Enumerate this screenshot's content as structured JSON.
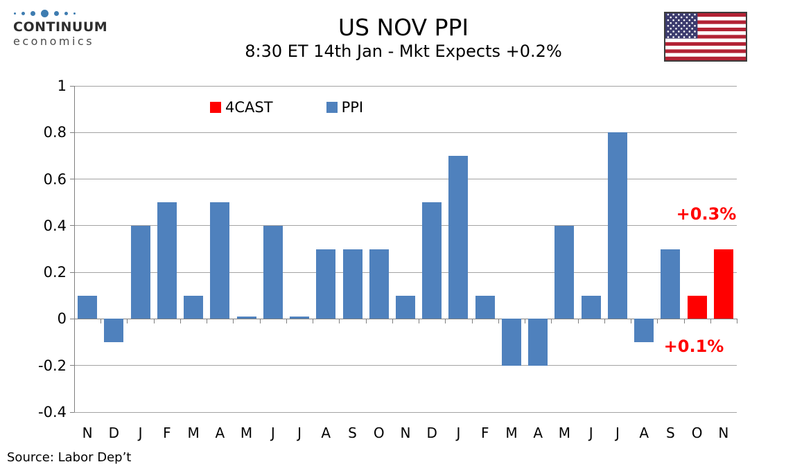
{
  "header": {
    "logo": {
      "line1": "CONTINUUM",
      "line2": "economics"
    },
    "title": "US NOV PPI",
    "subtitle": "8:30 ET 14th Jan - Mkt Expects +0.2%",
    "flag_icon": "us-flag"
  },
  "legend": [
    {
      "label": "4CAST",
      "color": "#FF0000"
    },
    {
      "label": "PPI",
      "color": "#4F81BD"
    }
  ],
  "annotations": [
    {
      "text": "+0.3%",
      "color": "#FF0000"
    },
    {
      "text": "+0.1%",
      "color": "#FF0000"
    }
  ],
  "source": "Source: Labor Dep’t",
  "chart_data": {
    "type": "bar",
    "title": "US NOV PPI",
    "subtitle": "8:30 ET 14th Jan - Mkt Expects +0.2%",
    "categories": [
      "N",
      "D",
      "J",
      "F",
      "M",
      "A",
      "M",
      "J",
      "J",
      "A",
      "S",
      "O",
      "N",
      "D",
      "J",
      "F",
      "M",
      "A",
      "M",
      "J",
      "J",
      "A",
      "S",
      "O",
      "N"
    ],
    "series": [
      {
        "name": "4CAST",
        "color": "#FF0000",
        "values": [
          null,
          null,
          null,
          null,
          null,
          null,
          null,
          null,
          null,
          null,
          null,
          null,
          null,
          null,
          null,
          null,
          null,
          null,
          null,
          null,
          null,
          null,
          null,
          0.1,
          0.3
        ]
      },
      {
        "name": "PPI",
        "color": "#4F81BD",
        "values": [
          0.1,
          -0.1,
          0.4,
          0.5,
          0.1,
          0.5,
          0.01,
          0.4,
          0.01,
          0.3,
          0.3,
          0.3,
          0.1,
          0.5,
          0.7,
          0.1,
          -0.2,
          -0.2,
          0.4,
          0.1,
          0.8,
          -0.1,
          0.3,
          null,
          null
        ]
      }
    ],
    "ylim": [
      -0.4,
      1.0
    ],
    "ytick_step": 0.2,
    "y_tick_labels": [
      "1",
      "0.8",
      "0.6",
      "0.4",
      "0.2",
      "0",
      "-0.2",
      "-0.4"
    ],
    "grid": true,
    "legend_position": "top-center",
    "annotations": [
      {
        "text": "+0.3%",
        "category_index": 24
      },
      {
        "text": "+0.1%",
        "category_index": 23
      }
    ]
  }
}
